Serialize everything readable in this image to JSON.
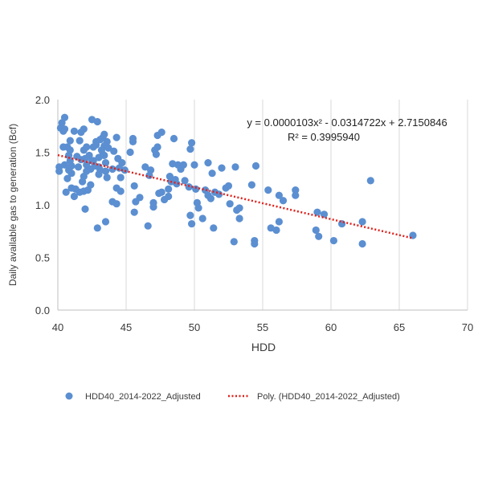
{
  "chart_data": {
    "type": "scatter",
    "xlabel": "HDD",
    "ylabel": "Daily available gas to generation (Bcf)",
    "xlim": [
      40,
      70
    ],
    "ylim": [
      0.0,
      2.0
    ],
    "x_ticks": [
      40,
      45,
      50,
      55,
      60,
      65,
      70
    ],
    "y_ticks": [
      "0.0",
      "0.5",
      "1.0",
      "1.5",
      "2.0"
    ],
    "y_tick_values": [
      0,
      0.5,
      1.0,
      1.5,
      2.0
    ],
    "grid": "vertical",
    "legend_position": "bottom",
    "colors": {
      "points": "#5b8fd1",
      "trendline": "#e0201b"
    },
    "annotation": {
      "equation": "y = 0.0000103x² - 0.0314722x + 2.7150846",
      "r_squared": "R² = 0.3995940"
    },
    "trendline": {
      "name": "Poly. (HDD40_2014-2022_Adjusted)",
      "coefficients": {
        "a": 1.03e-05,
        "b": -0.0314722,
        "c": 2.7150846
      },
      "x_range": [
        40,
        66
      ]
    },
    "series": [
      {
        "name": "HDD40_2014-2022_Adjusted",
        "points": [
          [
            40.1,
            1.32
          ],
          [
            40.1,
            1.36
          ],
          [
            40.2,
            1.73
          ],
          [
            40.3,
            1.78
          ],
          [
            40.4,
            1.7
          ],
          [
            40.4,
            1.55
          ],
          [
            40.5,
            1.83
          ],
          [
            40.5,
            1.72
          ],
          [
            40.5,
            1.38
          ],
          [
            40.6,
            1.12
          ],
          [
            40.7,
            1.55
          ],
          [
            40.7,
            1.25
          ],
          [
            40.8,
            1.33
          ],
          [
            40.8,
            1.47
          ],
          [
            40.9,
            1.52
          ],
          [
            40.9,
            1.61
          ],
          [
            40.9,
            1.42
          ],
          [
            41.0,
            1.16
          ],
          [
            41.0,
            1.37
          ],
          [
            41.0,
            1.3
          ],
          [
            41.2,
            1.7
          ],
          [
            41.2,
            1.08
          ],
          [
            41.3,
            1.15
          ],
          [
            41.4,
            1.46
          ],
          [
            41.5,
            1.36
          ],
          [
            41.6,
            1.12
          ],
          [
            41.6,
            1.61
          ],
          [
            41.7,
            1.69
          ],
          [
            41.7,
            1.43
          ],
          [
            41.8,
            1.22
          ],
          [
            41.9,
            1.72
          ],
          [
            41.9,
            1.52
          ],
          [
            41.9,
            1.27
          ],
          [
            41.9,
            1.13
          ],
          [
            42.0,
            0.96
          ],
          [
            42.0,
            1.44
          ],
          [
            42.1,
            1.55
          ],
          [
            42.1,
            1.38
          ],
          [
            42.1,
            1.32
          ],
          [
            42.2,
            1.14
          ],
          [
            42.3,
            1.47
          ],
          [
            42.4,
            1.34
          ],
          [
            42.4,
            1.19
          ],
          [
            42.5,
            1.81
          ],
          [
            42.5,
            1.42
          ],
          [
            42.6,
            1.55
          ],
          [
            42.6,
            1.42
          ],
          [
            42.7,
            1.37
          ],
          [
            42.8,
            1.6
          ],
          [
            42.8,
            1.57
          ],
          [
            42.9,
            0.78
          ],
          [
            42.9,
            1.79
          ],
          [
            43.0,
            1.45
          ],
          [
            43.0,
            1.36
          ],
          [
            43.0,
            1.29
          ],
          [
            43.1,
            1.62
          ],
          [
            43.1,
            1.33
          ],
          [
            43.2,
            1.52
          ],
          [
            43.3,
            1.64
          ],
          [
            43.3,
            1.48
          ],
          [
            43.4,
            1.56
          ],
          [
            43.4,
            1.67
          ],
          [
            43.4,
            1.47
          ],
          [
            43.5,
            0.84
          ],
          [
            43.5,
            1.4
          ],
          [
            43.5,
            1.32
          ],
          [
            43.6,
            1.6
          ],
          [
            43.6,
            1.26
          ],
          [
            43.7,
            1.54
          ],
          [
            44.0,
            1.34
          ],
          [
            44.0,
            1.03
          ],
          [
            44.1,
            1.51
          ],
          [
            44.3,
            1.64
          ],
          [
            44.3,
            1.16
          ],
          [
            44.3,
            1.01
          ],
          [
            44.4,
            1.44
          ],
          [
            44.5,
            1.35
          ],
          [
            44.6,
            1.26
          ],
          [
            44.6,
            1.13
          ],
          [
            44.7,
            1.4
          ],
          [
            44.9,
            1.33
          ],
          [
            45.3,
            1.5
          ],
          [
            45.5,
            1.63
          ],
          [
            45.5,
            1.6
          ],
          [
            45.6,
            1.18
          ],
          [
            45.6,
            0.93
          ],
          [
            45.7,
            1.03
          ],
          [
            46.0,
            1.07
          ],
          [
            46.4,
            1.36
          ],
          [
            46.6,
            0.8
          ],
          [
            46.7,
            1.28
          ],
          [
            46.8,
            1.33
          ],
          [
            47.0,
            1.02
          ],
          [
            47.0,
            0.98
          ],
          [
            47.1,
            1.52
          ],
          [
            47.2,
            1.48
          ],
          [
            47.3,
            1.66
          ],
          [
            47.3,
            1.55
          ],
          [
            47.4,
            1.11
          ],
          [
            47.6,
            1.69
          ],
          [
            47.6,
            1.12
          ],
          [
            47.8,
            1.05
          ],
          [
            48.1,
            1.15
          ],
          [
            48.1,
            1.08
          ],
          [
            48.2,
            1.27
          ],
          [
            48.3,
            1.22
          ],
          [
            48.4,
            1.39
          ],
          [
            48.5,
            1.63
          ],
          [
            48.6,
            1.24
          ],
          [
            48.7,
            1.2
          ],
          [
            48.8,
            1.38
          ],
          [
            49.0,
            1.34
          ],
          [
            49.2,
            1.38
          ],
          [
            49.3,
            1.23
          ],
          [
            49.6,
            1.17
          ],
          [
            49.7,
            1.53
          ],
          [
            49.7,
            0.9
          ],
          [
            49.8,
            1.59
          ],
          [
            49.8,
            0.82
          ],
          [
            50.0,
            1.38
          ],
          [
            50.1,
            1.15
          ],
          [
            50.2,
            1.02
          ],
          [
            50.3,
            0.97
          ],
          [
            50.6,
            0.87
          ],
          [
            50.8,
            1.14
          ],
          [
            51.0,
            1.4
          ],
          [
            51.0,
            1.09
          ],
          [
            51.2,
            1.06
          ],
          [
            51.3,
            1.3
          ],
          [
            51.4,
            0.78
          ],
          [
            51.5,
            1.12
          ],
          [
            51.8,
            1.1
          ],
          [
            52.0,
            1.35
          ],
          [
            52.3,
            1.16
          ],
          [
            52.5,
            1.18
          ],
          [
            52.6,
            1.01
          ],
          [
            52.9,
            0.65
          ],
          [
            53.0,
            1.36
          ],
          [
            53.1,
            0.95
          ],
          [
            53.3,
            0.87
          ],
          [
            53.3,
            0.97
          ],
          [
            54.2,
            1.19
          ],
          [
            54.4,
            0.66
          ],
          [
            54.4,
            0.63
          ],
          [
            54.5,
            1.37
          ],
          [
            55.4,
            1.14
          ],
          [
            55.6,
            0.78
          ],
          [
            56.0,
            0.76
          ],
          [
            56.2,
            1.09
          ],
          [
            56.2,
            0.84
          ],
          [
            56.5,
            1.04
          ],
          [
            57.4,
            1.14
          ],
          [
            57.4,
            1.09
          ],
          [
            58.9,
            0.76
          ],
          [
            59.0,
            0.93
          ],
          [
            59.1,
            0.7
          ],
          [
            59.5,
            0.91
          ],
          [
            60.2,
            0.66
          ],
          [
            60.8,
            0.82
          ],
          [
            62.3,
            0.84
          ],
          [
            62.3,
            0.63
          ],
          [
            62.9,
            1.23
          ],
          [
            66.0,
            0.71
          ]
        ]
      }
    ]
  }
}
